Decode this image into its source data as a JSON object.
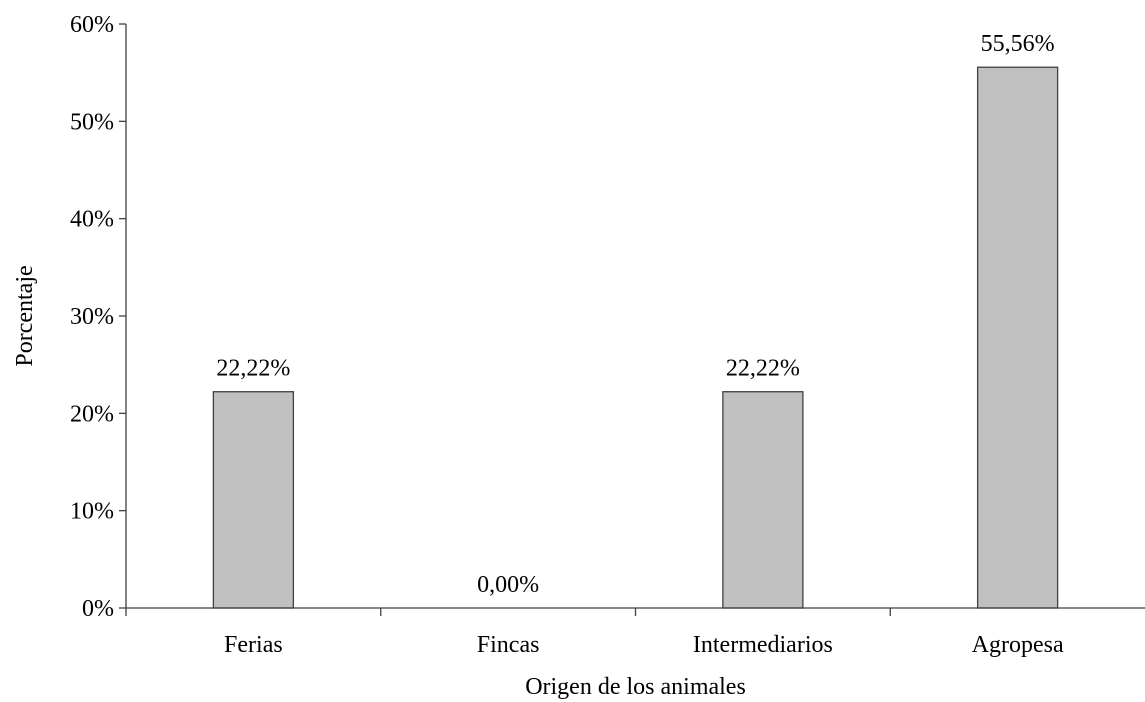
{
  "chart_data": {
    "type": "bar",
    "categories": [
      "Ferias",
      "Fincas",
      "Intermediarios",
      "Agropesa"
    ],
    "values": [
      22.22,
      0.0,
      22.22,
      55.56
    ],
    "data_labels": [
      "22,22%",
      "0,00%",
      "22,22%",
      "55,56%"
    ],
    "ylim": [
      0,
      60
    ],
    "yticks": [
      0,
      10,
      20,
      30,
      40,
      50,
      60
    ],
    "ytick_labels": [
      "0%",
      "10%",
      "20%",
      "30%",
      "40%",
      "50%",
      "60%"
    ],
    "xlabel": "Origen de los animales",
    "ylabel": "Porcentaje",
    "grid": false,
    "legend": "none",
    "bar_color": "#c0c0c0",
    "bar_edge_color": "#404040",
    "axis_color": "#404040"
  }
}
